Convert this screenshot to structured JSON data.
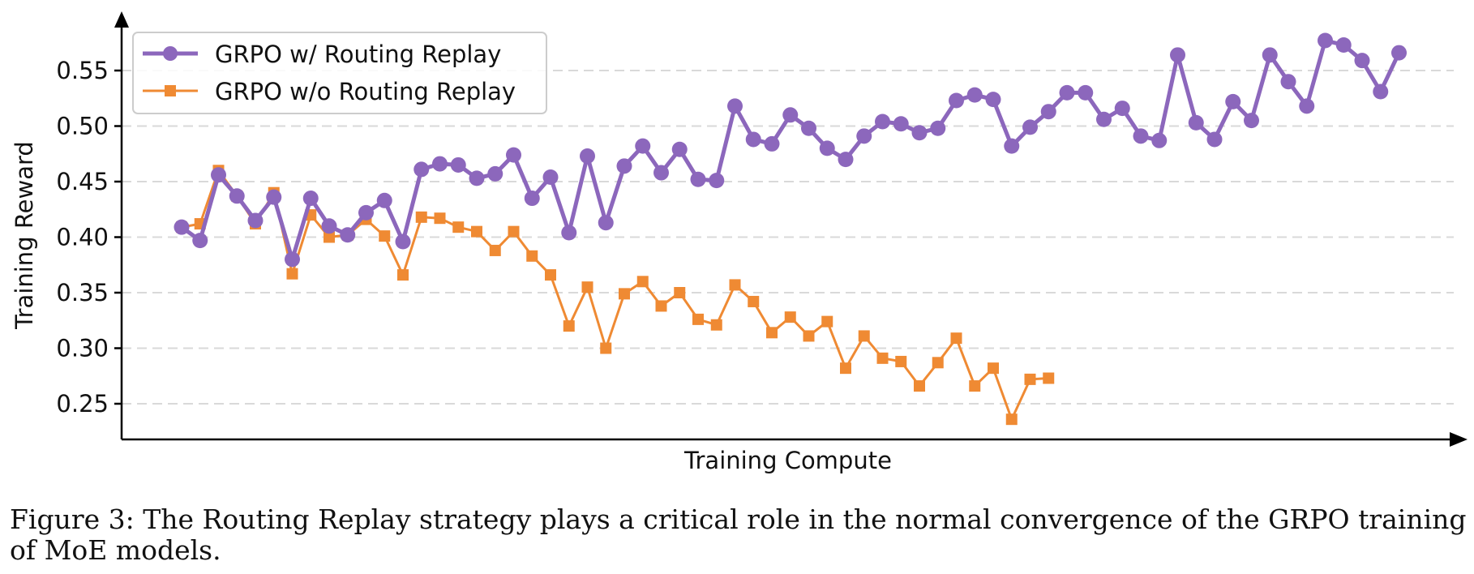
{
  "chart_data": {
    "type": "line",
    "title": "",
    "xlabel": "Training Compute",
    "ylabel": "Training Reward",
    "ylim": [
      0.22,
      0.59
    ],
    "yticks": [
      "0.25",
      "0.30",
      "0.35",
      "0.40",
      "0.45",
      "0.50",
      "0.55"
    ],
    "grid": "horizontal dashed",
    "legend_position": "top-left",
    "series": [
      {
        "name": "GRPO w/ Routing Replay",
        "color": "#8c67bc",
        "marker": "circle",
        "values": [
          0.409,
          0.397,
          0.456,
          0.437,
          0.415,
          0.436,
          0.38,
          0.435,
          0.41,
          0.402,
          0.422,
          0.433,
          0.396,
          0.461,
          0.466,
          0.465,
          0.453,
          0.457,
          0.474,
          0.435,
          0.454,
          0.404,
          0.473,
          0.413,
          0.464,
          0.482,
          0.458,
          0.479,
          0.452,
          0.451,
          0.518,
          0.488,
          0.484,
          0.51,
          0.498,
          0.48,
          0.47,
          0.491,
          0.504,
          0.502,
          0.494,
          0.498,
          0.523,
          0.528,
          0.524,
          0.482,
          0.499,
          0.513,
          0.53,
          0.53,
          0.506,
          0.516,
          0.491,
          0.487,
          0.564,
          0.503,
          0.488,
          0.522,
          0.505,
          0.564,
          0.54,
          0.518,
          0.577,
          0.573,
          0.559,
          0.531,
          0.566
        ]
      },
      {
        "name": "GRPO w/o Routing Replay",
        "color": "#ef8a33",
        "marker": "square",
        "values": [
          0.409,
          0.412,
          0.46,
          0.437,
          0.412,
          0.44,
          0.367,
          0.42,
          0.4,
          0.402,
          0.416,
          0.401,
          0.366,
          0.418,
          0.417,
          0.409,
          0.405,
          0.388,
          0.405,
          0.383,
          0.366,
          0.32,
          0.355,
          0.3,
          0.349,
          0.36,
          0.338,
          0.35,
          0.326,
          0.321,
          0.357,
          0.342,
          0.314,
          0.328,
          0.311,
          0.324,
          0.282,
          0.311,
          0.291,
          0.288,
          0.266,
          0.287,
          0.309,
          0.266,
          0.282,
          0.236,
          0.272,
          0.273
        ]
      }
    ]
  },
  "caption": {
    "line1": "Figure 3: The Routing Replay strategy plays a critical role in the normal convergence of the GRPO training",
    "line2": "of MoE models."
  }
}
